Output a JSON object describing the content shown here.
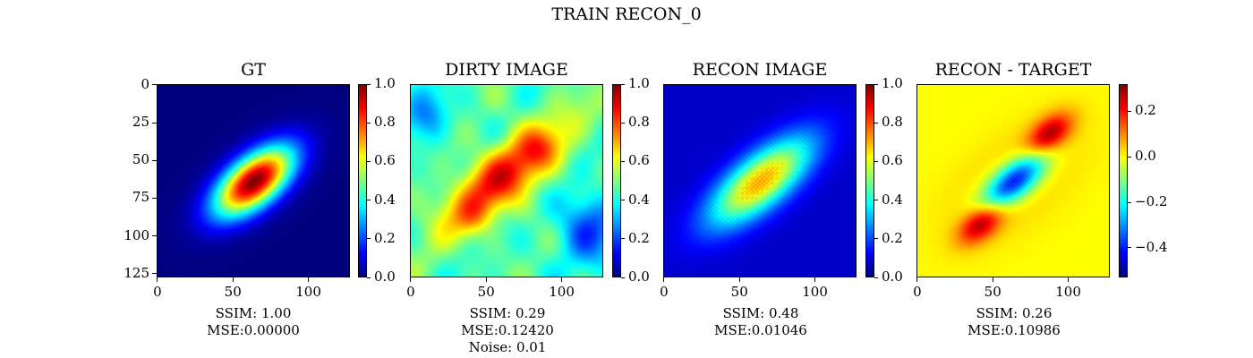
{
  "figure": {
    "suptitle": "TRAIN RECON_0"
  },
  "colormaps": {
    "jet": [
      "#00007f",
      "#0000ff",
      "#007fff",
      "#00ffff",
      "#7fff7f",
      "#ffff00",
      "#ff7f00",
      "#ff0000",
      "#7f0000"
    ]
  },
  "chart_data": [
    {
      "type": "heatmap",
      "title": "GT",
      "image_size": [
        128,
        128
      ],
      "x_ticks": [
        0,
        50,
        100
      ],
      "y_ticks": [
        0,
        25,
        50,
        75,
        100,
        125
      ],
      "colorbar": {
        "range": [
          0.0,
          1.0
        ],
        "ticks": [
          "0.0",
          "0.2",
          "0.4",
          "0.6",
          "0.8",
          "1.0"
        ]
      },
      "metrics": [
        "SSIM: 1.00",
        "MSE:0.00000"
      ]
    },
    {
      "type": "heatmap",
      "title": "DIRTY IMAGE",
      "image_size": [
        128,
        128
      ],
      "x_ticks": [
        0,
        50,
        100
      ],
      "colorbar": {
        "range": [
          0.0,
          1.0
        ],
        "ticks": [
          "0.0",
          "0.2",
          "0.4",
          "0.6",
          "0.8",
          "1.0"
        ]
      },
      "metrics": [
        "SSIM: 0.29",
        "MSE:0.12420",
        "Noise: 0.01"
      ]
    },
    {
      "type": "heatmap",
      "title": "RECON IMAGE",
      "image_size": [
        128,
        128
      ],
      "x_ticks": [
        0,
        50,
        100
      ],
      "colorbar": {
        "range": [
          0.0,
          1.0
        ],
        "ticks": [
          "0.0",
          "0.2",
          "0.4",
          "0.6",
          "0.8",
          "1.0"
        ]
      },
      "metrics": [
        "SSIM: 0.48",
        "MSE:0.01046"
      ]
    },
    {
      "type": "heatmap",
      "title": "RECON - TARGET",
      "image_size": [
        128,
        128
      ],
      "x_ticks": [
        0,
        50,
        100
      ],
      "colorbar": {
        "range": [
          -0.53,
          0.32
        ],
        "ticks": [
          "0.2",
          "0.0",
          "−0.2",
          "−0.4"
        ],
        "tick_values": [
          0.2,
          0.0,
          -0.2,
          -0.4
        ]
      },
      "metrics": [
        "SSIM: 0.26",
        "MSE:0.10986"
      ]
    }
  ]
}
